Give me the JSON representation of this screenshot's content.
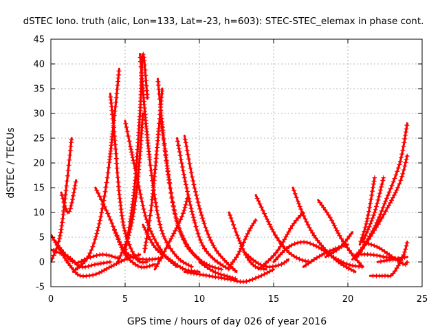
{
  "chart_data": {
    "type": "scatter",
    "title": "dSTEC Iono. truth (alic, Lon=133, Lat=-23, h=603): STEC-STEC_elemax in phase cont.",
    "xlabel": "GPS time / hours of day 026 of year 2016",
    "ylabel": "dSTEC  / TECUs",
    "xlim": [
      0,
      25
    ],
    "ylim": [
      -5,
      45
    ],
    "xticks": [
      "0",
      "5",
      "10",
      "15",
      "20",
      "25"
    ],
    "yticks": [
      "-5",
      "0",
      "5",
      "10",
      "15",
      "20",
      "25",
      "30",
      "35",
      "40",
      "45"
    ],
    "grid": true,
    "marker": "plus",
    "color": "#ff0000",
    "series": [
      {
        "x": [
          0.0,
          0.6,
          1.0,
          1.4
        ],
        "y": [
          0.0,
          5.0,
          14.0,
          25.0
        ]
      },
      {
        "x": [
          0.7,
          1.2,
          1.7
        ],
        "y": [
          14.0,
          10.0,
          16.5
        ]
      },
      {
        "x": [
          0.0,
          0.5,
          1.0,
          1.5,
          2.0,
          3.0,
          4.0,
          5.0,
          6.0
        ],
        "y": [
          5.5,
          3.0,
          0.5,
          -1.5,
          -2.8,
          -2.5,
          -1.0,
          0.5,
          1.5
        ]
      },
      {
        "x": [
          0.2,
          1.5,
          2.5,
          3.5,
          4.5
        ],
        "y": [
          4.5,
          0.0,
          0.8,
          1.5,
          0.8
        ]
      },
      {
        "x": [
          0.0,
          1.2,
          2.0,
          3.0,
          4.0
        ],
        "y": [
          2.5,
          1.0,
          -1.0,
          -0.5,
          0.0
        ]
      },
      {
        "x": [
          1.5,
          2.5,
          3.2,
          3.8,
          4.3,
          4.6
        ],
        "y": [
          -2.0,
          1.0,
          7.0,
          17.0,
          30.0,
          39.0
        ]
      },
      {
        "x": [
          3.0,
          3.8,
          4.5,
          5.0,
          6.0,
          7.0
        ],
        "y": [
          15.0,
          10.0,
          5.0,
          1.5,
          -1.0,
          -0.5
        ]
      },
      {
        "x": [
          4.0,
          4.3,
          4.6,
          5.0,
          5.8,
          6.5
        ],
        "y": [
          34.0,
          25.0,
          14.0,
          6.0,
          0.5,
          0.0
        ]
      },
      {
        "x": [
          4.2,
          4.8,
          5.5,
          6.5,
          7.5
        ],
        "y": [
          7.0,
          3.0,
          1.0,
          0.5,
          0.8
        ]
      },
      {
        "x": [
          4.5,
          5.3,
          5.8,
          6.2
        ],
        "y": [
          0.0,
          6.0,
          15.0,
          30.0
        ]
      },
      {
        "x": [
          5.0,
          5.8,
          6.5,
          7.5,
          8.5
        ],
        "y": [
          28.5,
          17.0,
          8.0,
          2.0,
          -1.0
        ]
      },
      {
        "x": [
          5.0,
          5.6,
          6.0,
          6.2,
          6.5
        ],
        "y": [
          2.0,
          14.0,
          30.0,
          42.0,
          33.0
        ]
      },
      {
        "x": [
          6.0,
          6.4,
          6.9,
          7.5,
          8.5,
          9.5
        ],
        "y": [
          42.0,
          28.0,
          15.0,
          6.0,
          1.0,
          -1.0
        ]
      },
      {
        "x": [
          6.2,
          7.0,
          8.0,
          9.0,
          10.0
        ],
        "y": [
          7.5,
          3.0,
          0.5,
          -1.5,
          -2.0
        ]
      },
      {
        "x": [
          6.3,
          6.8,
          7.3,
          7.5
        ],
        "y": [
          2.0,
          12.0,
          28.0,
          35.0
        ]
      },
      {
        "x": [
          7.2,
          7.6,
          8.2,
          9.0,
          10.0
        ],
        "y": [
          37.0,
          25.0,
          12.0,
          4.0,
          0.5
        ]
      },
      {
        "x": [
          7.4,
          7.9,
          8.5,
          9.5,
          10.5,
          11.5
        ],
        "y": [
          29.0,
          18.0,
          8.0,
          2.0,
          -0.5,
          -1.5
        ]
      },
      {
        "x": [
          7.0,
          7.8,
          8.8,
          9.2
        ],
        "y": [
          -1.5,
          3.0,
          9.0,
          13.0
        ]
      },
      {
        "x": [
          8.5,
          9.0,
          9.6,
          10.2,
          11.0,
          12.0
        ],
        "y": [
          25.0,
          17.0,
          9.0,
          3.5,
          0.5,
          -1.5
        ]
      },
      {
        "x": [
          9.0,
          9.6,
          10.3,
          11.0,
          11.8,
          12.5
        ],
        "y": [
          25.5,
          16.0,
          8.0,
          3.0,
          0.0,
          -2.0
        ]
      },
      {
        "x": [
          9.0,
          10.0,
          11.0,
          12.0,
          13.0,
          14.0,
          15.0
        ],
        "y": [
          -2.0,
          -2.5,
          -3.0,
          -3.5,
          -4.0,
          -3.0,
          -1.5
        ]
      },
      {
        "x": [
          10.0,
          11.0,
          12.0,
          12.5
        ],
        "y": [
          0.0,
          -2.0,
          -3.0,
          -3.5
        ]
      },
      {
        "x": [
          12.0,
          12.6,
          13.2,
          13.8,
          14.5
        ],
        "y": [
          10.0,
          5.0,
          1.0,
          -1.0,
          -1.5
        ]
      },
      {
        "x": [
          12.0,
          12.6,
          13.3,
          13.8
        ],
        "y": [
          -1.0,
          1.5,
          6.0,
          8.5
        ]
      },
      {
        "x": [
          13.0,
          13.8,
          14.6,
          15.5,
          16.0
        ],
        "y": [
          2.0,
          0.0,
          -1.0,
          -0.5,
          0.5
        ]
      },
      {
        "x": [
          13.8,
          14.5,
          15.2,
          16.0,
          16.8,
          17.5
        ],
        "y": [
          13.5,
          9.0,
          5.0,
          2.0,
          0.5,
          0.0
        ]
      },
      {
        "x": [
          14.0,
          15.2,
          16.3,
          17.0
        ],
        "y": [
          -1.5,
          2.0,
          7.5,
          10.0
        ]
      },
      {
        "x": [
          15.0,
          16.0,
          17.0,
          18.0,
          19.0,
          20.0,
          21.0
        ],
        "y": [
          0.0,
          3.0,
          4.0,
          3.0,
          1.0,
          -0.5,
          -1.0
        ]
      },
      {
        "x": [
          16.3,
          17.0,
          17.8,
          18.8,
          19.6,
          20.5
        ],
        "y": [
          15.0,
          9.5,
          5.0,
          1.5,
          -0.5,
          -2.0
        ]
      },
      {
        "x": [
          17.0,
          18.0,
          19.0,
          20.0
        ],
        "y": [
          -1.0,
          1.0,
          2.5,
          3.5
        ]
      },
      {
        "x": [
          18.0,
          18.8,
          19.5,
          20.3,
          21.0
        ],
        "y": [
          12.5,
          9.0,
          5.0,
          1.5,
          -1.0
        ]
      },
      {
        "x": [
          18.5,
          19.5,
          20.3
        ],
        "y": [
          1.0,
          3.0,
          6.0
        ]
      },
      {
        "x": [
          20.3,
          21.0,
          21.8,
          22.5,
          23.5,
          24.0
        ],
        "y": [
          0.5,
          3.0,
          7.0,
          12.0,
          20.0,
          28.0
        ]
      },
      {
        "x": [
          20.5,
          21.5,
          22.5,
          23.5,
          24.0
        ],
        "y": [
          0.5,
          5.0,
          10.0,
          16.0,
          21.5
        ]
      },
      {
        "x": [
          20.8,
          21.3,
          21.8
        ],
        "y": [
          3.5,
          8.5,
          17.0
        ]
      },
      {
        "x": [
          21.0,
          21.8,
          22.4
        ],
        "y": [
          4.0,
          10.0,
          17.0
        ]
      },
      {
        "x": [
          21.0,
          22.0,
          23.0,
          23.8,
          24.0
        ],
        "y": [
          4.0,
          3.0,
          1.0,
          -0.5,
          0.0
        ]
      },
      {
        "x": [
          20.5,
          21.5,
          22.5,
          23.5
        ],
        "y": [
          1.5,
          1.5,
          1.0,
          0.5
        ]
      },
      {
        "x": [
          21.5,
          22.5,
          23.0,
          23.7,
          24.0
        ],
        "y": [
          -2.8,
          -2.8,
          -2.5,
          1.0,
          4.0
        ]
      },
      {
        "x": [
          22.0,
          23.0,
          24.0
        ],
        "y": [
          0.0,
          0.5,
          1.0
        ]
      }
    ]
  }
}
